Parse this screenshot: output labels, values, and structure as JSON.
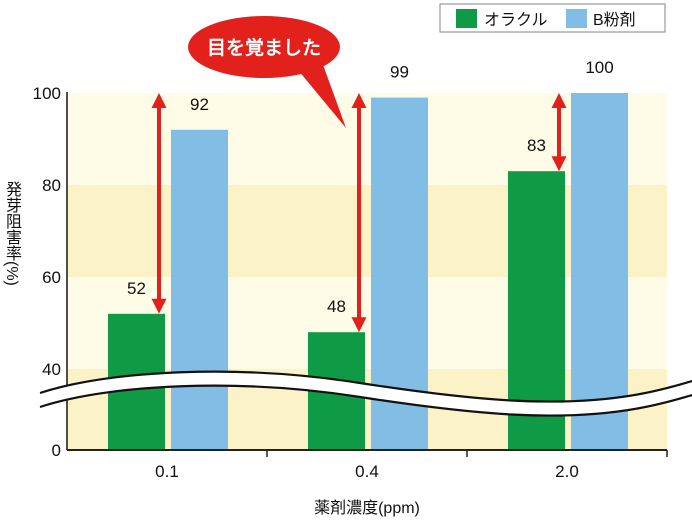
{
  "chart_data": {
    "type": "bar",
    "categories": [
      "0.1",
      "0.4",
      "2.0"
    ],
    "series": [
      {
        "name": "オラクル",
        "values": [
          52,
          48,
          83
        ],
        "color": "#0f9a45"
      },
      {
        "name": "B粉剤",
        "values": [
          92,
          99,
          100
        ],
        "color": "#82bde6"
      }
    ],
    "xlabel": "薬剤濃度(ppm)",
    "ylabel": "発芽阻害率(%)",
    "ylim": [
      0,
      100
    ],
    "yticks": [
      0,
      40,
      60,
      80,
      100
    ],
    "axis_break": [
      0,
      40
    ],
    "annotation": "目を覚ました",
    "annotation_color": "#e3211c",
    "difference_arrows": {
      "from_series": "オラクル",
      "to_value": 100,
      "color": "#e3211c"
    },
    "legend": "top-right",
    "grid": false,
    "band_colors": [
      "#fefbe6",
      "#fcf2c8"
    ]
  }
}
